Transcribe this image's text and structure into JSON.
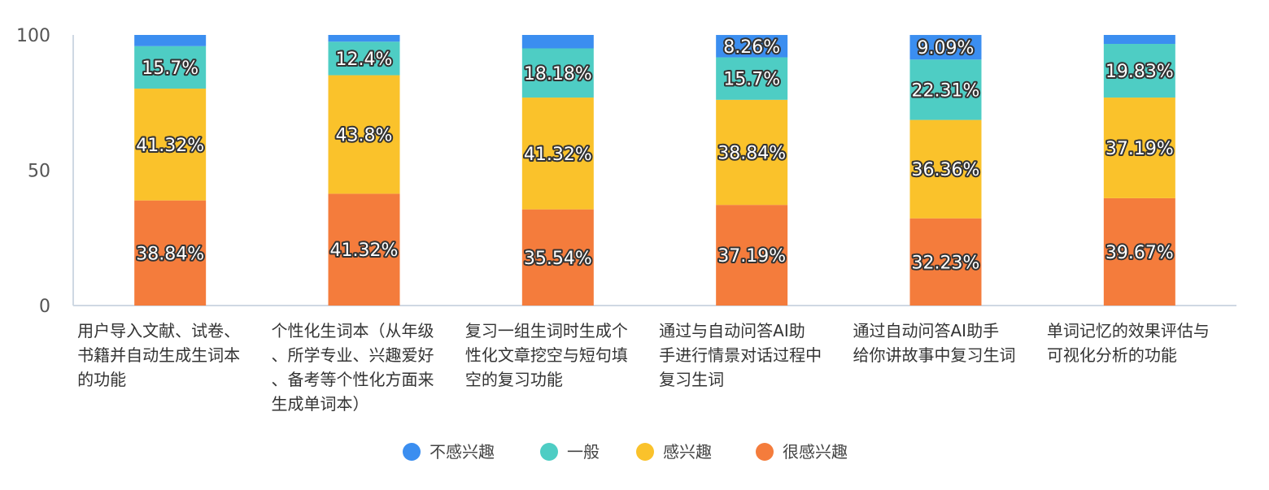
{
  "chart_data": {
    "type": "bar",
    "stacked": true,
    "ylim": [
      0,
      100
    ],
    "yticks": [
      0,
      50,
      100
    ],
    "grid": false,
    "legend_position": "bottom-center",
    "categories": [
      [
        "用户导入文献、试卷、",
        "书籍并自动生成生词本",
        "的功能"
      ],
      [
        "个性化生词本（从年级",
        "、所学专业、兴趣爱好",
        "、备考等个性化方面来",
        "生成单词本）"
      ],
      [
        "复习一组生词时生成个",
        "性化文章挖空与短句填",
        "空的复习功能"
      ],
      [
        "通过与自动问答AI助",
        "手进行情景对话过程中",
        "复习生词"
      ],
      [
        "通过自动问答AI助手",
        "给你讲故事中复习生词"
      ],
      [
        "单词记忆的效果评估与",
        "可视化分析的功能"
      ]
    ],
    "series": [
      {
        "name": "很感兴趣",
        "color": "#f47c3c",
        "values": [
          38.84,
          41.32,
          35.54,
          37.19,
          32.23,
          39.67
        ],
        "labels": [
          "38.84%",
          "41.32%",
          "35.54%",
          "37.19%",
          "32.23%",
          "39.67%"
        ]
      },
      {
        "name": "感兴趣",
        "color": "#fac22b",
        "values": [
          41.32,
          43.8,
          41.32,
          38.84,
          36.36,
          37.19
        ],
        "labels": [
          "41.32%",
          "43.8%",
          "41.32%",
          "38.84%",
          "36.36%",
          "37.19%"
        ]
      },
      {
        "name": "一般",
        "color": "#4ecdc4",
        "values": [
          15.7,
          12.4,
          18.18,
          15.7,
          22.31,
          19.83
        ],
        "labels": [
          "15.7%",
          "12.4%",
          "18.18%",
          "15.7%",
          "22.31%",
          "19.83%"
        ]
      },
      {
        "name": "不感兴趣",
        "color": "#3b8ef0",
        "values": [
          4.14,
          2.48,
          4.96,
          8.26,
          9.09,
          3.31
        ],
        "labels": [
          "",
          "",
          "",
          "8.26%",
          "9.09%",
          ""
        ]
      }
    ],
    "legend_order": [
      "不感兴趣",
      "一般",
      "感兴趣",
      "很感兴趣"
    ]
  }
}
